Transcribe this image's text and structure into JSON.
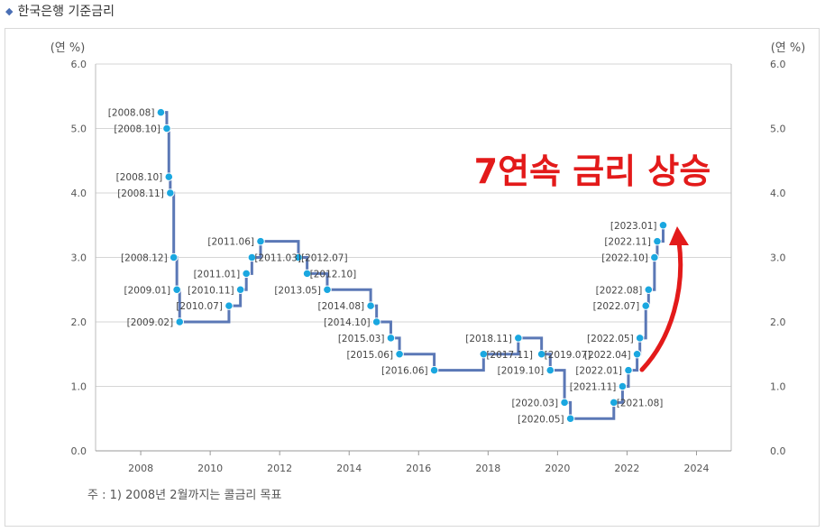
{
  "header": {
    "title": "한국은행 기준금리"
  },
  "chart_data": {
    "type": "line",
    "step": true,
    "title": "",
    "left_unit": "(연 %)",
    "right_unit": "(연 %)",
    "ylim": [
      0,
      6
    ],
    "y_ticks": [
      "0.0",
      "1.0",
      "2.0",
      "3.0",
      "4.0",
      "5.0",
      "6.0"
    ],
    "xlim": [
      2006.7,
      2025.0
    ],
    "x_ticks": [
      "2008",
      "2010",
      "2012",
      "2014",
      "2016",
      "2018",
      "2020",
      "2022",
      "2024"
    ],
    "grid": true,
    "line_color": "#5b78b6",
    "point_color": "#1aa7e0",
    "points": [
      {
        "x": 2008.58,
        "y": 5.25,
        "label": "[2008.08]"
      },
      {
        "x": 2008.75,
        "y": 5.0,
        "label": "[2008.10]"
      },
      {
        "x": 2008.81,
        "y": 4.25,
        "label": "[2008.10]"
      },
      {
        "x": 2008.85,
        "y": 4.0,
        "label": "[2008.11]"
      },
      {
        "x": 2008.95,
        "y": 3.0,
        "label": "[2008.12]"
      },
      {
        "x": 2009.04,
        "y": 2.5,
        "label": "[2009.01]"
      },
      {
        "x": 2009.12,
        "y": 2.0,
        "label": "[2009.02]"
      },
      {
        "x": 2010.54,
        "y": 2.25,
        "label": "[2010.07]"
      },
      {
        "x": 2010.87,
        "y": 2.5,
        "label": "[2010.11]"
      },
      {
        "x": 2011.04,
        "y": 2.75,
        "label": "[2011.01]"
      },
      {
        "x": 2011.2,
        "y": 3.0,
        "label": "[2011.03]"
      },
      {
        "x": 2011.45,
        "y": 3.25,
        "label": "[2011.06]"
      },
      {
        "x": 2012.54,
        "y": 3.0,
        "label": "[2012.07]"
      },
      {
        "x": 2012.79,
        "y": 2.75,
        "label": "[2012.10]"
      },
      {
        "x": 2013.37,
        "y": 2.5,
        "label": "[2013.05]"
      },
      {
        "x": 2014.62,
        "y": 2.25,
        "label": "[2014.08]"
      },
      {
        "x": 2014.79,
        "y": 2.0,
        "label": "[2014.10]"
      },
      {
        "x": 2015.2,
        "y": 1.75,
        "label": "[2015.03]"
      },
      {
        "x": 2015.45,
        "y": 1.5,
        "label": "[2015.06]"
      },
      {
        "x": 2016.45,
        "y": 1.25,
        "label": "[2016.06]"
      },
      {
        "x": 2017.87,
        "y": 1.5,
        "label": "[2017.11]"
      },
      {
        "x": 2018.87,
        "y": 1.75,
        "label": "[2018.11]"
      },
      {
        "x": 2019.54,
        "y": 1.5,
        "label": "[2019.07]"
      },
      {
        "x": 2019.79,
        "y": 1.25,
        "label": "[2019.10]"
      },
      {
        "x": 2020.2,
        "y": 0.75,
        "label": "[2020.03]"
      },
      {
        "x": 2020.37,
        "y": 0.5,
        "label": "[2020.05]"
      },
      {
        "x": 2021.62,
        "y": 0.75,
        "label": "[2021.08]"
      },
      {
        "x": 2021.87,
        "y": 1.0,
        "label": "[2021.11]"
      },
      {
        "x": 2022.04,
        "y": 1.25,
        "label": "[2022.01]"
      },
      {
        "x": 2022.29,
        "y": 1.5,
        "label": "[2022.04]"
      },
      {
        "x": 2022.37,
        "y": 1.75,
        "label": "[2022.05]"
      },
      {
        "x": 2022.54,
        "y": 2.25,
        "label": "[2022.07]"
      },
      {
        "x": 2022.62,
        "y": 2.5,
        "label": "[2022.08]"
      },
      {
        "x": 2022.79,
        "y": 3.0,
        "label": "[2022.10]"
      },
      {
        "x": 2022.87,
        "y": 3.25,
        "label": "[2022.11]"
      },
      {
        "x": 2023.04,
        "y": 3.5,
        "label": "[2023.01]"
      }
    ],
    "annotation": {
      "text": "7연속 금리 상승",
      "color": "#e31a1a"
    },
    "footnote": "주 : 1) 2008년 2월까지는 콜금리 목표"
  }
}
